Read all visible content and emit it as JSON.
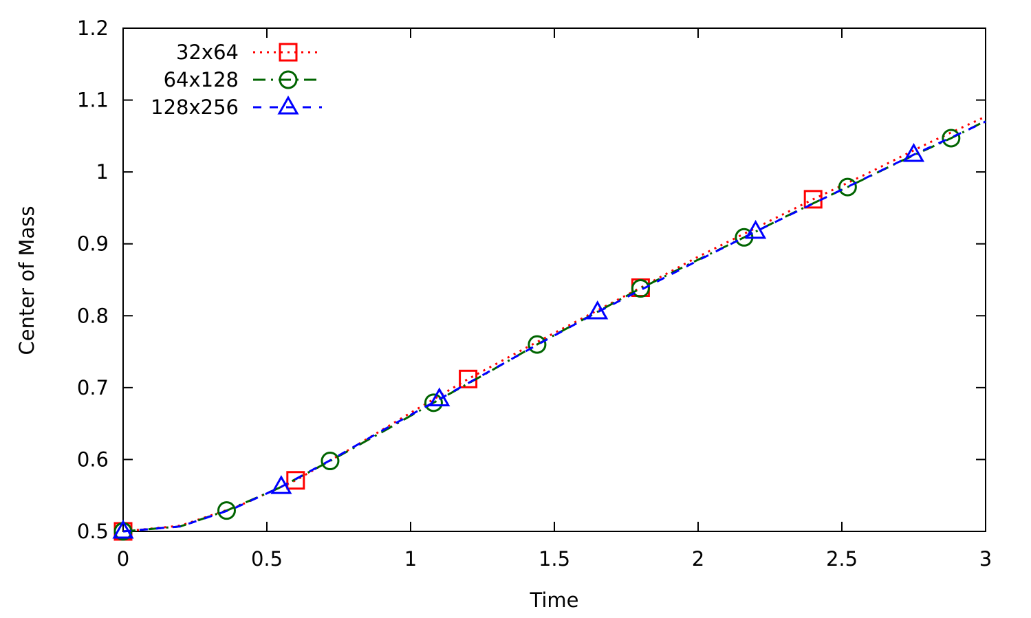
{
  "chart_data": {
    "type": "line",
    "xlabel": "Time",
    "ylabel": "Center of Mass",
    "xlim": [
      0,
      3
    ],
    "ylim": [
      0.5,
      1.2
    ],
    "x_ticks": [
      "0",
      "0.5",
      "1",
      "1.5",
      "2",
      "2.5",
      "3"
    ],
    "y_ticks": [
      "0.5",
      "0.6",
      "0.7",
      "0.8",
      "0.9",
      "1",
      "1.1",
      "1.2"
    ],
    "grid": false,
    "legend_position": "top-left",
    "series": [
      {
        "name": "32x64",
        "color": "#ff0000",
        "dash": "dotted",
        "marker": "square",
        "curve": [
          [
            0,
            0.5
          ],
          [
            0.2,
            0.508
          ],
          [
            0.4,
            0.535
          ],
          [
            0.6,
            0.571
          ],
          [
            0.8,
            0.617
          ],
          [
            1.0,
            0.665
          ],
          [
            1.2,
            0.712
          ],
          [
            1.4,
            0.755
          ],
          [
            1.6,
            0.797
          ],
          [
            1.8,
            0.839
          ],
          [
            2.0,
            0.882
          ],
          [
            2.2,
            0.922
          ],
          [
            2.4,
            0.962
          ],
          [
            2.6,
            1.0
          ],
          [
            2.8,
            1.04
          ],
          [
            3.0,
            1.077
          ]
        ],
        "markers": [
          [
            0,
            0.5
          ],
          [
            0.6,
            0.571
          ],
          [
            1.2,
            0.712
          ],
          [
            1.8,
            0.839
          ],
          [
            2.4,
            0.962
          ]
        ]
      },
      {
        "name": "64x128",
        "color": "#006400",
        "dash": "dash-dot",
        "marker": "circle",
        "curve": [
          [
            0,
            0.5
          ],
          [
            0.2,
            0.507
          ],
          [
            0.36,
            0.529
          ],
          [
            0.54,
            0.56
          ],
          [
            0.72,
            0.598
          ],
          [
            0.9,
            0.638
          ],
          [
            1.08,
            0.679
          ],
          [
            1.26,
            0.719
          ],
          [
            1.44,
            0.76
          ],
          [
            1.62,
            0.799
          ],
          [
            1.8,
            0.838
          ],
          [
            1.98,
            0.874
          ],
          [
            2.16,
            0.909
          ],
          [
            2.34,
            0.945
          ],
          [
            2.52,
            0.979
          ],
          [
            2.7,
            1.014
          ],
          [
            2.88,
            1.047
          ],
          [
            3.0,
            1.071
          ]
        ],
        "markers": [
          [
            0,
            0.5
          ],
          [
            0.36,
            0.529
          ],
          [
            0.72,
            0.598
          ],
          [
            1.08,
            0.679
          ],
          [
            1.44,
            0.76
          ],
          [
            1.8,
            0.838
          ],
          [
            2.16,
            0.909
          ],
          [
            2.52,
            0.979
          ],
          [
            2.88,
            1.047
          ]
        ]
      },
      {
        "name": "128x256",
        "color": "#0000ff",
        "dash": "dashed",
        "marker": "triangle",
        "curve": [
          [
            0,
            0.5
          ],
          [
            0.2,
            0.507
          ],
          [
            0.38,
            0.531
          ],
          [
            0.55,
            0.562
          ],
          [
            0.73,
            0.601
          ],
          [
            0.9,
            0.64
          ],
          [
            1.1,
            0.684
          ],
          [
            1.28,
            0.724
          ],
          [
            1.47,
            0.766
          ],
          [
            1.65,
            0.805
          ],
          [
            1.84,
            0.844
          ],
          [
            2.02,
            0.881
          ],
          [
            2.2,
            0.917
          ],
          [
            2.39,
            0.954
          ],
          [
            2.57,
            0.989
          ],
          [
            2.75,
            1.024
          ],
          [
            2.93,
            1.057
          ],
          [
            3.0,
            1.07
          ]
        ],
        "markers": [
          [
            0,
            0.5
          ],
          [
            0.55,
            0.562
          ],
          [
            1.1,
            0.684
          ],
          [
            1.65,
            0.805
          ],
          [
            2.2,
            0.917
          ],
          [
            2.75,
            1.024
          ]
        ]
      }
    ]
  }
}
